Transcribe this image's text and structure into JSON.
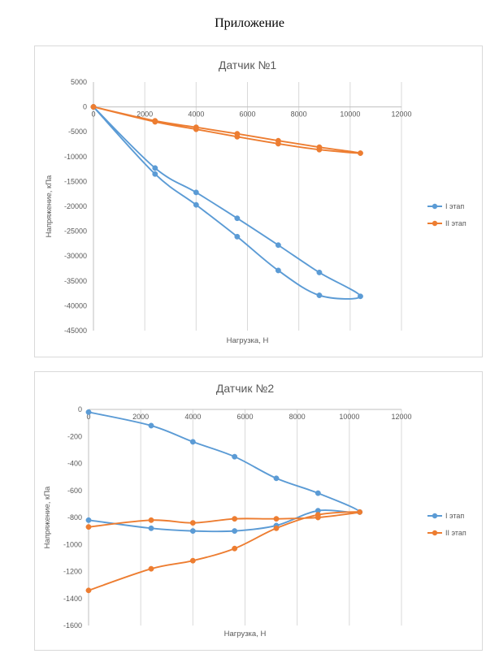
{
  "page": {
    "heading": "Приложение"
  },
  "chart_data": [
    {
      "type": "scatter",
      "title": "Датчик №1",
      "xlabel": "Нагрузка, Н",
      "ylabel": "Напряжение, кПа",
      "xlim": [
        0,
        12000
      ],
      "ylim": [
        -45000,
        5000
      ],
      "x_ticks": [
        0,
        2000,
        4000,
        6000,
        8000,
        10000,
        12000
      ],
      "x_tick_labels": [
        "0",
        "2000",
        "4000",
        "6000",
        "8000",
        "10000",
        "12000"
      ],
      "y_ticks": [
        5000,
        0,
        -5000,
        -10000,
        -15000,
        -20000,
        -25000,
        -30000,
        -35000,
        -40000,
        -45000
      ],
      "y_tick_labels": [
        "5000",
        "0",
        "-5000",
        "-10000",
        "-15000",
        "-20000",
        "-25000",
        "-30000",
        "-35000",
        "-40000",
        "-45000"
      ],
      "grid": "vertical",
      "legend": "right",
      "series": [
        {
          "name": "I этап",
          "color": "#5b9bd5",
          "x": [
            0,
            2400,
            4000,
            5600,
            7200,
            8800,
            10400,
            8800,
            7200,
            5600,
            4000,
            2400,
            0
          ],
          "y": [
            0,
            -13500,
            -19700,
            -26100,
            -32900,
            -37900,
            -38100,
            -33300,
            -27800,
            -22400,
            -17200,
            -12300,
            0
          ]
        },
        {
          "name": "II этап",
          "color": "#ed7d31",
          "x": [
            0,
            2400,
            4000,
            5600,
            7200,
            8800,
            10400,
            8800,
            7200,
            5600,
            4000,
            2400,
            0
          ],
          "y": [
            0,
            -3000,
            -4500,
            -6000,
            -7400,
            -8600,
            -9300,
            -8100,
            -6800,
            -5400,
            -4100,
            -2800,
            0
          ]
        }
      ]
    },
    {
      "type": "scatter",
      "title": "Датчик №2",
      "xlabel": "Нагрузка, Н",
      "ylabel": "Напряжение, кПа",
      "xlim": [
        0,
        12000
      ],
      "ylim": [
        -1600,
        0
      ],
      "x_ticks": [
        0,
        2000,
        4000,
        6000,
        8000,
        10000,
        12000
      ],
      "x_tick_labels": [
        "0",
        "2000",
        "4000",
        "6000",
        "8000",
        "10000",
        "12000"
      ],
      "y_ticks": [
        0,
        -200,
        -400,
        -600,
        -800,
        -1000,
        -1200,
        -1400,
        -1600
      ],
      "y_tick_labels": [
        "0",
        "-200",
        "-400",
        "-600",
        "-800",
        "-1000",
        "-1200",
        "-1400",
        "-1600"
      ],
      "grid": "vertical",
      "legend": "right",
      "series": [
        {
          "name": "I этап",
          "color": "#5b9bd5",
          "x": [
            0,
            2400,
            4000,
            5600,
            7200,
            8800,
            10400,
            8800,
            7200,
            5600,
            4000,
            2400,
            0
          ],
          "y": [
            -20,
            -120,
            -240,
            -350,
            -510,
            -620,
            -760,
            -750,
            -860,
            -900,
            -900,
            -880,
            -820
          ]
        },
        {
          "name": "II этап",
          "color": "#ed7d31",
          "x": [
            0,
            2400,
            4000,
            5600,
            7200,
            8800,
            10400,
            8800,
            7200,
            5600,
            4000,
            2400,
            0
          ],
          "y": [
            -1340,
            -1180,
            -1120,
            -1030,
            -880,
            -780,
            -760,
            -800,
            -810,
            -810,
            -840,
            -820,
            -870
          ]
        }
      ]
    }
  ]
}
